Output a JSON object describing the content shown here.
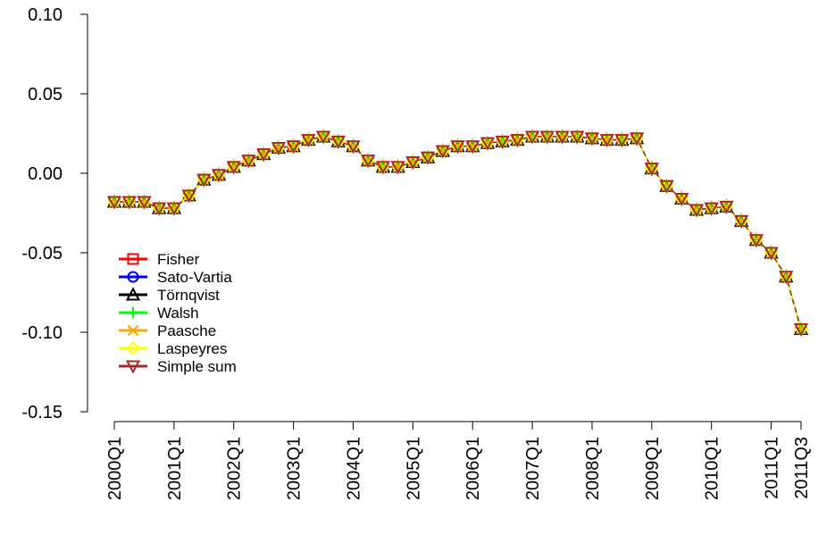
{
  "chart_data": {
    "type": "line",
    "title": "",
    "xlabel": "",
    "ylabel": "",
    "ylim": [
      -0.15,
      0.1
    ],
    "yticks": [
      "0.10",
      "0.05",
      "0.00",
      "-0.05",
      "-0.10",
      "-0.15"
    ],
    "ytick_values": [
      0.1,
      0.05,
      0.0,
      -0.05,
      -0.1,
      -0.15
    ],
    "xtick_labels": [
      "2000Q1",
      "2001Q1",
      "2002Q1",
      "2003Q1",
      "2004Q1",
      "2005Q1",
      "2006Q1",
      "2007Q1",
      "2008Q1",
      "2009Q1",
      "2010Q1",
      "2011Q1",
      "2011Q3"
    ],
    "xtick_indices": [
      0,
      4,
      8,
      12,
      16,
      20,
      24,
      28,
      32,
      36,
      40,
      44,
      46
    ],
    "categories": [
      "2000Q1",
      "2000Q2",
      "2000Q3",
      "2000Q4",
      "2001Q1",
      "2001Q2",
      "2001Q3",
      "2001Q4",
      "2002Q1",
      "2002Q2",
      "2002Q3",
      "2002Q4",
      "2003Q1",
      "2003Q2",
      "2003Q3",
      "2003Q4",
      "2004Q1",
      "2004Q2",
      "2004Q3",
      "2004Q4",
      "2005Q1",
      "2005Q2",
      "2005Q3",
      "2005Q4",
      "2006Q1",
      "2006Q2",
      "2006Q3",
      "2006Q4",
      "2007Q1",
      "2007Q2",
      "2007Q3",
      "2007Q4",
      "2008Q1",
      "2008Q2",
      "2008Q3",
      "2008Q4",
      "2009Q1",
      "2009Q2",
      "2009Q3",
      "2009Q4",
      "2010Q1",
      "2010Q2",
      "2010Q3",
      "2010Q4",
      "2011Q1",
      "2011Q2",
      "2011Q3"
    ],
    "legend_position": "left",
    "series": [
      {
        "name": "Fisher",
        "color": "#ff0000",
        "marker": "square",
        "values": [
          -0.018,
          -0.018,
          -0.018,
          -0.022,
          -0.022,
          -0.014,
          -0.004,
          -0.001,
          0.004,
          0.008,
          0.012,
          0.016,
          0.017,
          0.021,
          0.023,
          0.02,
          0.017,
          0.008,
          0.004,
          0.004,
          0.007,
          0.01,
          0.014,
          0.017,
          0.017,
          0.019,
          0.02,
          0.021,
          0.023,
          0.023,
          0.023,
          0.023,
          0.022,
          0.021,
          0.021,
          0.022,
          0.003,
          -0.008,
          -0.016,
          -0.023,
          -0.022,
          -0.021,
          -0.03,
          -0.042,
          -0.05,
          -0.065,
          -0.098
        ]
      },
      {
        "name": "Sato-Vartia",
        "color": "#0000ff",
        "marker": "circle",
        "values": [
          -0.018,
          -0.018,
          -0.018,
          -0.022,
          -0.022,
          -0.014,
          -0.004,
          -0.001,
          0.004,
          0.008,
          0.012,
          0.016,
          0.017,
          0.021,
          0.023,
          0.02,
          0.017,
          0.008,
          0.004,
          0.004,
          0.007,
          0.01,
          0.014,
          0.017,
          0.017,
          0.019,
          0.02,
          0.021,
          0.023,
          0.023,
          0.023,
          0.023,
          0.022,
          0.021,
          0.021,
          0.022,
          0.003,
          -0.008,
          -0.016,
          -0.023,
          -0.022,
          -0.021,
          -0.03,
          -0.042,
          -0.05,
          -0.065,
          -0.098
        ]
      },
      {
        "name": "Törnqvist",
        "color": "#000000",
        "marker": "triangle-up",
        "values": [
          -0.018,
          -0.018,
          -0.018,
          -0.022,
          -0.022,
          -0.014,
          -0.004,
          -0.001,
          0.004,
          0.008,
          0.012,
          0.016,
          0.017,
          0.021,
          0.023,
          0.02,
          0.017,
          0.008,
          0.004,
          0.004,
          0.007,
          0.01,
          0.014,
          0.017,
          0.017,
          0.019,
          0.02,
          0.021,
          0.023,
          0.023,
          0.023,
          0.023,
          0.022,
          0.021,
          0.021,
          0.022,
          0.003,
          -0.008,
          -0.016,
          -0.023,
          -0.022,
          -0.021,
          -0.03,
          -0.042,
          -0.05,
          -0.065,
          -0.098
        ]
      },
      {
        "name": "Walsh",
        "color": "#00ff00",
        "marker": "plus",
        "values": [
          -0.018,
          -0.018,
          -0.018,
          -0.022,
          -0.022,
          -0.014,
          -0.004,
          -0.001,
          0.004,
          0.008,
          0.012,
          0.016,
          0.017,
          0.021,
          0.023,
          0.02,
          0.017,
          0.008,
          0.004,
          0.004,
          0.007,
          0.01,
          0.014,
          0.017,
          0.017,
          0.019,
          0.02,
          0.021,
          0.023,
          0.023,
          0.023,
          0.023,
          0.022,
          0.021,
          0.021,
          0.022,
          0.003,
          -0.008,
          -0.016,
          -0.023,
          -0.022,
          -0.021,
          -0.03,
          -0.042,
          -0.05,
          -0.065,
          -0.098
        ]
      },
      {
        "name": "Paasche",
        "color": "#ffa500",
        "marker": "x",
        "values": [
          -0.018,
          -0.018,
          -0.018,
          -0.022,
          -0.022,
          -0.014,
          -0.004,
          -0.001,
          0.004,
          0.008,
          0.012,
          0.016,
          0.017,
          0.021,
          0.023,
          0.02,
          0.017,
          0.008,
          0.004,
          0.004,
          0.007,
          0.01,
          0.014,
          0.017,
          0.017,
          0.019,
          0.02,
          0.021,
          0.023,
          0.023,
          0.023,
          0.023,
          0.022,
          0.021,
          0.021,
          0.022,
          0.003,
          -0.008,
          -0.016,
          -0.023,
          -0.022,
          -0.021,
          -0.03,
          -0.042,
          -0.05,
          -0.065,
          -0.098
        ]
      },
      {
        "name": "Laspeyres",
        "color": "#ffff00",
        "marker": "diamond",
        "values": [
          -0.018,
          -0.018,
          -0.018,
          -0.022,
          -0.022,
          -0.014,
          -0.004,
          -0.001,
          0.004,
          0.008,
          0.012,
          0.016,
          0.017,
          0.021,
          0.023,
          0.02,
          0.017,
          0.008,
          0.004,
          0.004,
          0.007,
          0.01,
          0.014,
          0.017,
          0.017,
          0.019,
          0.02,
          0.021,
          0.023,
          0.023,
          0.023,
          0.023,
          0.022,
          0.021,
          0.021,
          0.022,
          0.003,
          -0.008,
          -0.016,
          -0.023,
          -0.022,
          -0.021,
          -0.03,
          -0.042,
          -0.05,
          -0.065,
          -0.098
        ]
      },
      {
        "name": "Simple sum",
        "color": "#a52a2a",
        "marker": "triangle-down",
        "values": [
          -0.018,
          -0.018,
          -0.018,
          -0.022,
          -0.022,
          -0.014,
          -0.004,
          -0.001,
          0.004,
          0.008,
          0.012,
          0.016,
          0.017,
          0.021,
          0.023,
          0.02,
          0.017,
          0.008,
          0.004,
          0.004,
          0.007,
          0.01,
          0.014,
          0.017,
          0.017,
          0.019,
          0.02,
          0.021,
          0.023,
          0.023,
          0.023,
          0.023,
          0.022,
          0.021,
          0.021,
          0.022,
          0.003,
          -0.008,
          -0.016,
          -0.023,
          -0.022,
          -0.021,
          -0.03,
          -0.042,
          -0.05,
          -0.065,
          -0.098
        ]
      }
    ]
  }
}
